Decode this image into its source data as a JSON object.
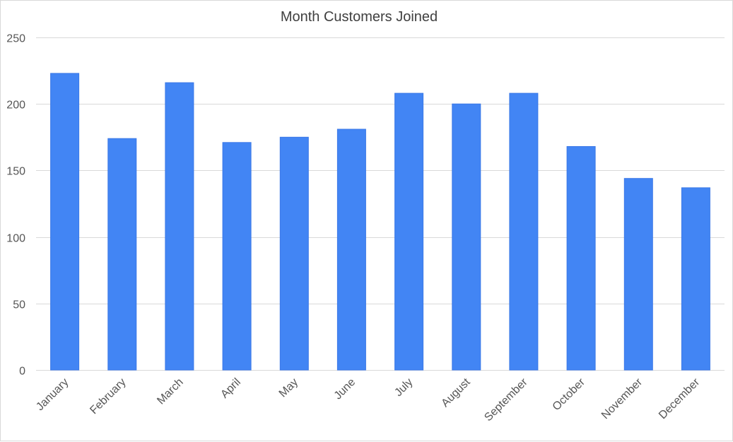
{
  "chart_data": {
    "type": "bar",
    "title": "Month Customers Joined",
    "xlabel": "",
    "ylabel": "",
    "categories": [
      "January",
      "February",
      "March",
      "April",
      "May",
      "June",
      "July",
      "August",
      "September",
      "October",
      "November",
      "December"
    ],
    "values": [
      223,
      174,
      216,
      171,
      175,
      181,
      208,
      200,
      208,
      168,
      144,
      137
    ],
    "ylim": [
      0,
      250
    ],
    "yticks": [
      0,
      50,
      100,
      150,
      200,
      250
    ],
    "grid": true,
    "legend": "none",
    "colors": {
      "bar": "#4285f4",
      "bar_border": "#3b78e7",
      "grid": "#d9d9d9",
      "title": "#404040",
      "tick_label": "#555555"
    }
  }
}
